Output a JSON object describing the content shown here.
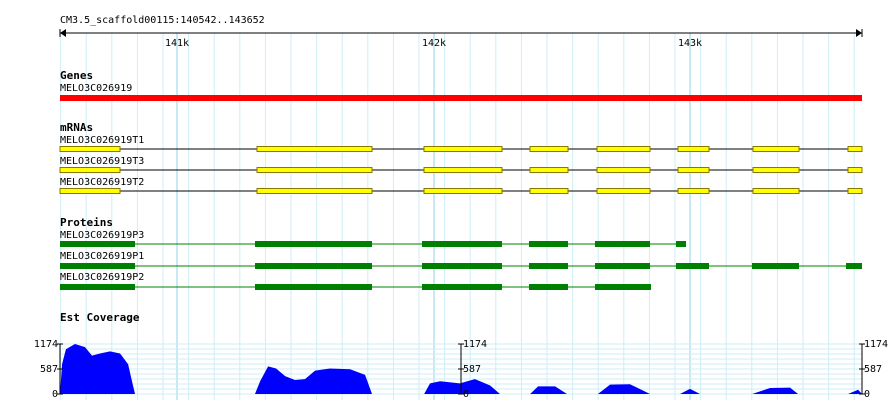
{
  "ruler": {
    "label": "CM3.5_scaffold00115:140542..143652",
    "ticks": [
      "141k",
      "142k",
      "143k"
    ]
  },
  "tracks": {
    "genes": {
      "title": "Genes",
      "items": [
        "MELO3C026919"
      ]
    },
    "mrnas": {
      "title": "mRNAs",
      "items": [
        "MELO3C026919T1",
        "MELO3C026919T3",
        "MELO3C026919T2"
      ]
    },
    "proteins": {
      "title": "Proteins",
      "items": [
        "MELO3C026919P3",
        "MELO3C026919P1",
        "MELO3C026919P2"
      ]
    },
    "coverage": {
      "title": "Est Coverage",
      "ylim": [
        0,
        1174
      ],
      "yticks": [
        1174,
        587,
        0
      ],
      "x": [
        140542,
        140550,
        140565,
        140600,
        140639,
        140666,
        140697,
        140736,
        140775,
        140806,
        140825,
        140833,
        141298,
        141318,
        141349,
        141380,
        141415,
        141453,
        141492,
        141531,
        141589,
        141667,
        141725,
        141752,
        141954,
        141977,
        142016,
        142093,
        142151,
        142210,
        142248,
        142365,
        142396,
        142462,
        142508,
        142628,
        142675,
        142752,
        142830,
        142946,
        142985,
        143024,
        143226,
        143295,
        143373,
        143404,
        143598,
        143637,
        143652
      ],
      "values": [
        0,
        700,
        1050,
        1174,
        1100,
        900,
        950,
        1000,
        950,
        700,
        200,
        0,
        0,
        300,
        650,
        600,
        420,
        330,
        350,
        550,
        600,
        580,
        450,
        0,
        0,
        250,
        300,
        250,
        350,
        200,
        0,
        0,
        180,
        180,
        0,
        0,
        220,
        230,
        0,
        0,
        120,
        0,
        0,
        140,
        150,
        0,
        0,
        100,
        0
      ],
      "xlim": [
        140542,
        143652
      ]
    }
  }
}
